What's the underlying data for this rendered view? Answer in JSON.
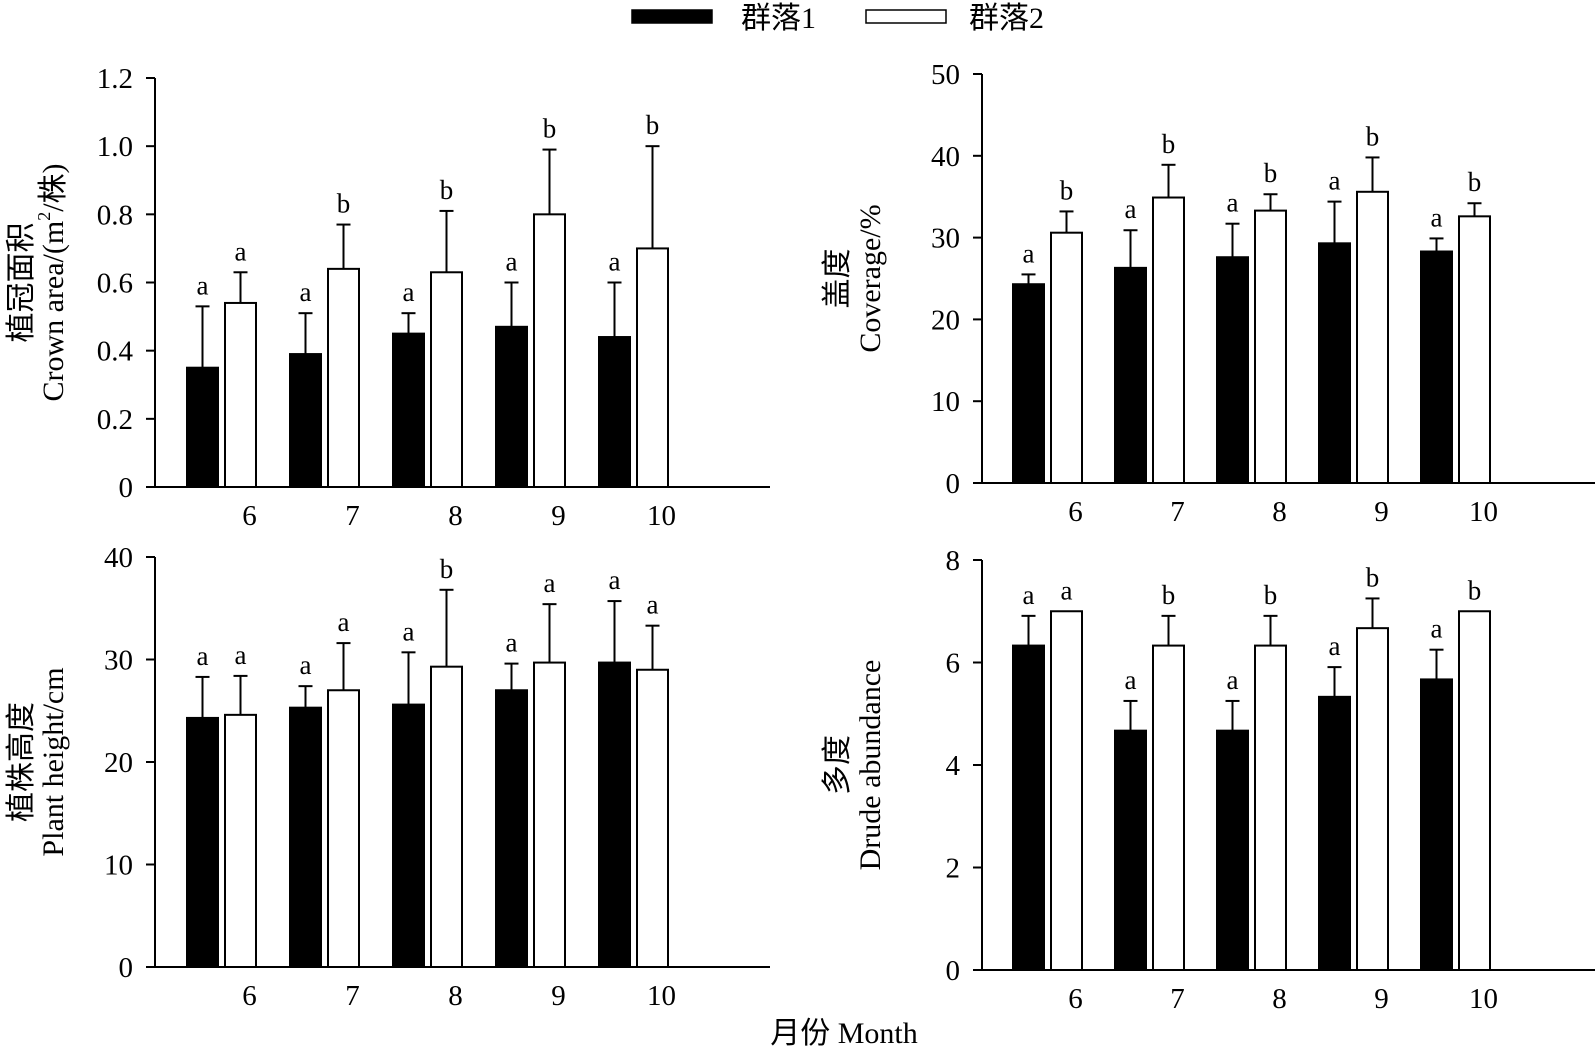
{
  "legend": {
    "items": [
      {
        "label": "群落1",
        "fill": "#000000"
      },
      {
        "label": "群落2",
        "fill": "#ffffff"
      }
    ]
  },
  "x_axis_title": "月份 Month",
  "chart_data": [
    {
      "type": "bar",
      "categories": [
        "6",
        "7",
        "8",
        "9",
        "10"
      ],
      "ylabel_cn": "植冠面积/(m²/株)",
      "ylabel_en": "Crown area/(m",
      "ylabel_en_sup": "2",
      "ylabel_en_tail": "/株)",
      "ylabel_cn_short": "植冠面积",
      "ylim": [
        0,
        1.2
      ],
      "yticks": [
        "0",
        "0.2",
        "0.4",
        "0.6",
        "0.8",
        "1.0",
        "1.2"
      ],
      "ytick_values": [
        0,
        0.2,
        0.4,
        0.6,
        0.8,
        1.0,
        1.2
      ],
      "series": [
        {
          "name": "群落1",
          "values": [
            0.35,
            0.39,
            0.45,
            0.47,
            0.44
          ],
          "errors": [
            0.18,
            0.12,
            0.06,
            0.13,
            0.16
          ],
          "letters": [
            "a",
            "a",
            "a",
            "a",
            "a"
          ]
        },
        {
          "name": "群落2",
          "values": [
            0.54,
            0.64,
            0.63,
            0.8,
            0.7
          ],
          "errors": [
            0.09,
            0.13,
            0.18,
            0.19,
            0.3
          ],
          "letters": [
            "a",
            "b",
            "b",
            "b",
            "b"
          ]
        }
      ]
    },
    {
      "type": "bar",
      "categories": [
        "6",
        "7",
        "8",
        "9",
        "10"
      ],
      "ylabel_cn": "盖度",
      "ylabel_en": "Coverage/%",
      "ylim": [
        0,
        50
      ],
      "yticks": [
        "0",
        "10",
        "20",
        "30",
        "40",
        "50"
      ],
      "ytick_values": [
        0,
        10,
        20,
        30,
        40,
        50
      ],
      "series": [
        {
          "name": "群落1",
          "values": [
            24.3,
            26.3,
            27.6,
            29.3,
            28.3
          ],
          "errors": [
            1.2,
            4.6,
            4.1,
            5.1,
            1.6
          ],
          "letters": [
            "a",
            "a",
            "a",
            "a",
            "a"
          ]
        },
        {
          "name": "群落2",
          "values": [
            30.6,
            34.9,
            33.3,
            35.6,
            32.6
          ],
          "errors": [
            2.6,
            4.0,
            2.0,
            4.2,
            1.6
          ],
          "letters": [
            "b",
            "b",
            "b",
            "b",
            "b"
          ]
        }
      ]
    },
    {
      "type": "bar",
      "categories": [
        "6",
        "7",
        "8",
        "9",
        "10"
      ],
      "ylabel_cn": "植株高度",
      "ylabel_en": "Plant height/cm",
      "ylim": [
        0,
        40
      ],
      "yticks": [
        "0",
        "10",
        "20",
        "30",
        "40"
      ],
      "ytick_values": [
        0,
        10,
        20,
        30,
        40
      ],
      "series": [
        {
          "name": "群落1",
          "values": [
            24.3,
            25.3,
            25.6,
            27.0,
            29.7
          ],
          "errors": [
            4.0,
            2.1,
            5.1,
            2.6,
            6.0
          ],
          "letters": [
            "a",
            "a",
            "a",
            "a",
            "a"
          ]
        },
        {
          "name": "群落2",
          "values": [
            24.6,
            27.0,
            29.3,
            29.7,
            29.0
          ],
          "errors": [
            3.8,
            4.6,
            7.5,
            5.7,
            4.3
          ],
          "letters": [
            "a",
            "a",
            "b",
            "a",
            "a"
          ]
        }
      ]
    },
    {
      "type": "bar",
      "categories": [
        "6",
        "7",
        "8",
        "9",
        "10"
      ],
      "ylabel_cn": "多度",
      "ylabel_en": "Drude abundance",
      "ylim": [
        0,
        8
      ],
      "yticks": [
        "0",
        "2",
        "4",
        "6",
        "8"
      ],
      "ytick_values": [
        0,
        2,
        4,
        6,
        8
      ],
      "series": [
        {
          "name": "群落1",
          "values": [
            6.33,
            4.67,
            4.67,
            5.33,
            5.67
          ],
          "errors": [
            0.58,
            0.58,
            0.58,
            0.58,
            0.58
          ],
          "letters": [
            "a",
            "a",
            "a",
            "a",
            "a"
          ]
        },
        {
          "name": "群落2",
          "values": [
            7.0,
            6.33,
            6.33,
            6.67,
            7.0
          ],
          "errors": [
            0,
            0.58,
            0.58,
            0.58,
            0
          ],
          "letters": [
            "a",
            "b",
            "b",
            "b",
            "b"
          ]
        }
      ]
    }
  ]
}
